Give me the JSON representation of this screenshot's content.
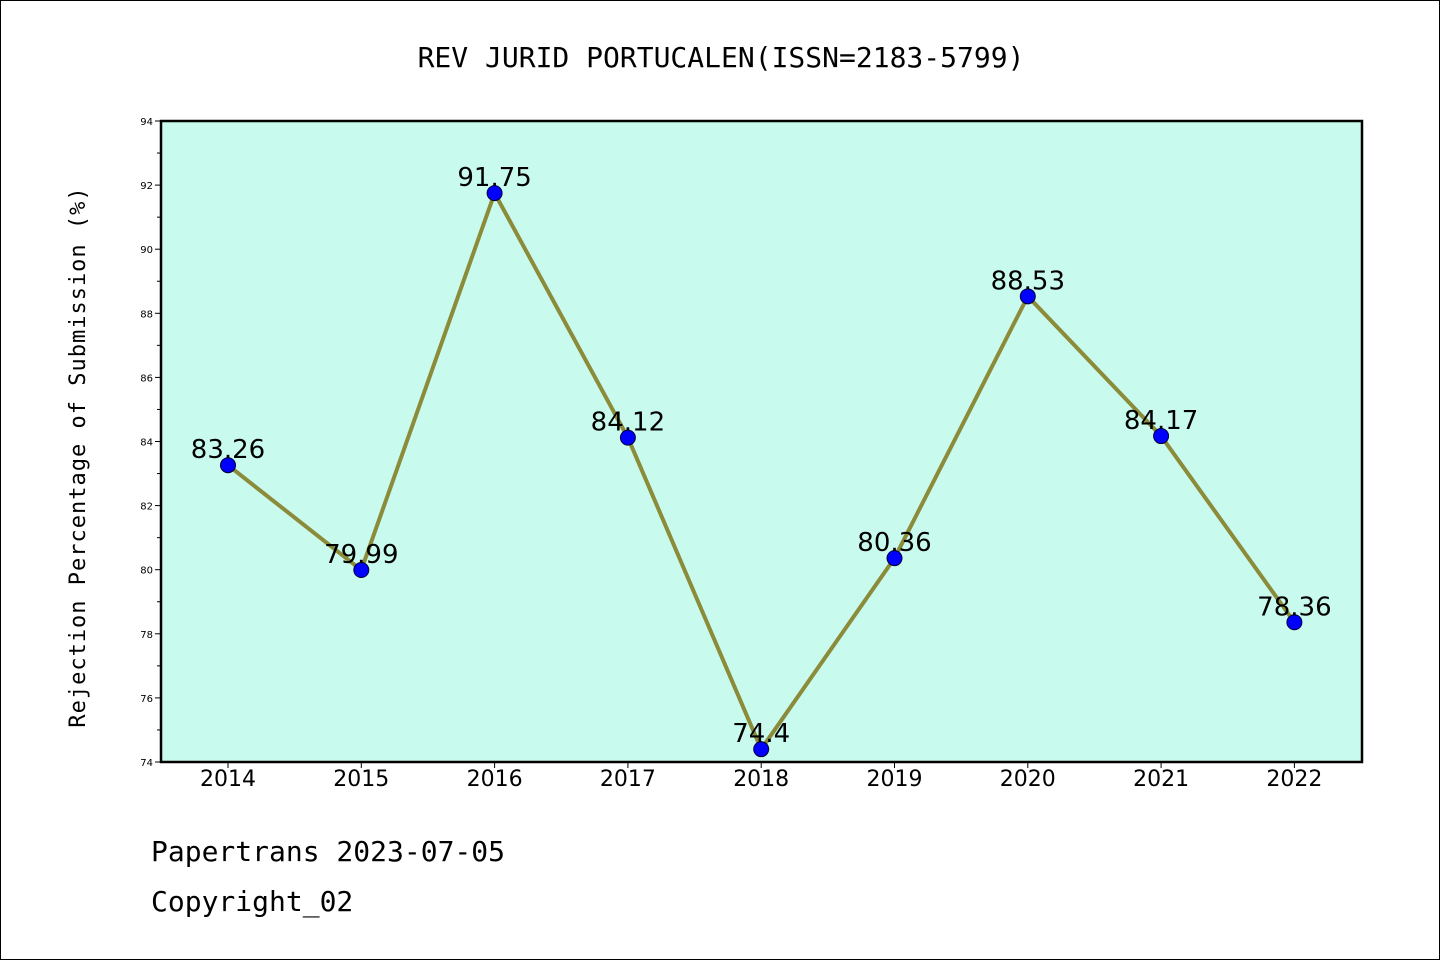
{
  "chart_data": {
    "type": "line",
    "title": "REV JURID PORTUCALEN(ISSN=2183-5799)",
    "xlabel": "",
    "ylabel": "Rejection Percentage of Submission (%)",
    "categories": [
      "2014",
      "2015",
      "2016",
      "2017",
      "2018",
      "2019",
      "2020",
      "2021",
      "2022"
    ],
    "values": [
      83.26,
      79.99,
      91.75,
      84.12,
      74.4,
      80.36,
      88.53,
      84.17,
      78.36
    ],
    "data_labels": [
      "83.26",
      "79.99",
      "91.75",
      "84.12",
      "74.4",
      "80.36",
      "88.53",
      "84.17",
      "78.36"
    ],
    "ylim": [
      74,
      94
    ],
    "yticks": [
      "74",
      "76",
      "78",
      "80",
      "82",
      "84",
      "86",
      "88",
      "90",
      "92",
      "94"
    ],
    "grid": false,
    "colors": {
      "plot_background": "#c8fbee",
      "line": "#8b8b3a",
      "marker": "#0000ff"
    }
  },
  "footer": {
    "line1": "Papertrans 2023-07-05",
    "line2": "Copyright_02"
  }
}
